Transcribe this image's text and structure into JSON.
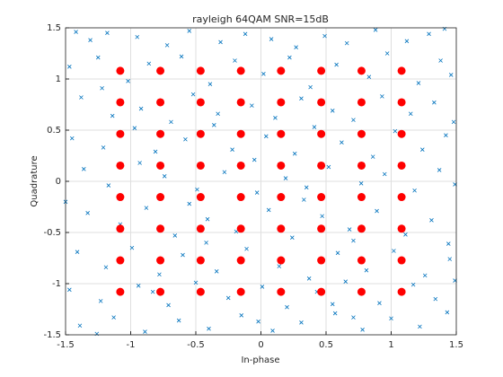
{
  "chart_data": {
    "type": "scatter",
    "title": "rayleigh 64QAM SNR=15dB",
    "x_label": "In-phase",
    "y_label": "Quadrature",
    "xlim": [
      -1.5,
      1.5
    ],
    "ylim": [
      -1.5,
      1.5
    ],
    "xticks": [
      -1.5,
      -1,
      -0.5,
      0,
      0.5,
      1,
      1.5
    ],
    "yticks": [
      -1.5,
      -1,
      -0.5,
      0,
      0.5,
      1,
      1.5
    ],
    "grid": true,
    "series": [
      {
        "color": "#0072bd",
        "marker": "x",
        "x": [
          -1.42,
          -1.31,
          -1.18,
          -0.95,
          -0.72,
          -0.55,
          -0.31,
          -0.12,
          0.08,
          0.27,
          0.49,
          0.66,
          0.88,
          1.12,
          1.29,
          1.41,
          -1.47,
          -1.25,
          -1.02,
          -0.86,
          -0.61,
          -0.39,
          -0.2,
          0.02,
          0.22,
          0.38,
          0.58,
          0.83,
          0.97,
          1.21,
          1.38,
          1.46,
          -1.38,
          -1.14,
          -0.92,
          -0.69,
          -0.52,
          -0.33,
          -0.07,
          0.11,
          0.31,
          0.55,
          0.71,
          0.93,
          1.15,
          1.33,
          1.48,
          -1.22,
          -1.45,
          -1.21,
          -0.97,
          -0.81,
          -0.58,
          -0.36,
          -0.22,
          0.04,
          0.26,
          0.41,
          0.62,
          0.86,
          1.03,
          1.24,
          1.42,
          -0.05,
          -1.36,
          -1.17,
          -0.93,
          -0.74,
          -0.49,
          -0.28,
          -0.03,
          0.19,
          0.35,
          0.52,
          0.77,
          0.95,
          1.18,
          1.37,
          1.49,
          -1.5,
          -1.33,
          -1.08,
          -0.88,
          -0.66,
          -0.41,
          -0.19,
          0.06,
          0.24,
          0.47,
          0.68,
          0.89,
          1.11,
          1.31,
          1.44,
          -0.55,
          0.33,
          -1.41,
          -1.19,
          -0.99,
          -0.78,
          -0.6,
          -0.34,
          -0.11,
          0.14,
          0.37,
          0.59,
          0.81,
          1.02,
          1.26,
          1.45,
          -0.42,
          0.71,
          -1.47,
          -1.23,
          -0.94,
          -0.71,
          -0.5,
          -0.25,
          0.01,
          0.2,
          0.43,
          0.65,
          0.91,
          1.17,
          1.34,
          1.49,
          -0.83,
          0.55,
          -1.39,
          -1.13,
          -0.89,
          -0.63,
          -0.4,
          -0.15,
          0.09,
          0.31,
          0.57,
          0.78,
          1.0,
          1.22,
          1.43,
          -0.02,
          0.71,
          -1.26
        ],
        "y": [
          1.46,
          1.38,
          1.45,
          1.41,
          1.33,
          1.47,
          1.36,
          1.44,
          1.39,
          1.31,
          1.42,
          1.35,
          1.48,
          1.37,
          1.44,
          1.49,
          1.12,
          1.21,
          0.98,
          1.15,
          1.22,
          0.95,
          1.18,
          1.05,
          1.21,
          0.92,
          1.14,
          1.02,
          1.25,
          0.96,
          1.18,
          1.04,
          0.82,
          0.64,
          0.71,
          0.58,
          0.85,
          0.66,
          0.74,
          0.62,
          0.81,
          0.69,
          0.6,
          0.83,
          0.66,
          0.77,
          0.58,
          0.91,
          0.42,
          0.33,
          0.52,
          0.29,
          0.41,
          0.55,
          0.31,
          0.44,
          0.27,
          0.53,
          0.38,
          0.24,
          0.49,
          0.31,
          0.45,
          0.21,
          0.12,
          -0.04,
          0.18,
          0.05,
          -0.08,
          0.09,
          -0.11,
          0.03,
          -0.06,
          0.14,
          -0.02,
          0.07,
          -0.09,
          0.11,
          -0.03,
          -0.2,
          -0.31,
          -0.42,
          -0.26,
          -0.53,
          -0.37,
          -0.49,
          -0.28,
          -0.55,
          -0.34,
          -0.47,
          -0.29,
          -0.52,
          -0.38,
          -0.61,
          -0.22,
          -0.18,
          -0.69,
          -0.84,
          -0.65,
          -0.91,
          -0.72,
          -0.88,
          -0.66,
          -0.83,
          -0.95,
          -0.7,
          -0.87,
          -0.68,
          -0.92,
          -0.76,
          -0.6,
          -0.58,
          -1.06,
          -1.17,
          -1.02,
          -1.21,
          -0.99,
          -1.14,
          -1.03,
          -1.23,
          -1.08,
          -0.98,
          -1.19,
          -1.01,
          -1.15,
          -0.97,
          -1.08,
          -1.2,
          -1.41,
          -1.33,
          -1.47,
          -1.36,
          -1.44,
          -1.31,
          -1.46,
          -1.38,
          -1.29,
          -1.45,
          -1.34,
          -1.42,
          -1.28,
          -1.37,
          -1.33,
          -1.49
        ]
      },
      {
        "color": "#ff0000",
        "marker": "o",
        "x": [
          -1.08,
          -1.08,
          -1.08,
          -1.08,
          -1.08,
          -1.08,
          -1.08,
          -1.08,
          -0.772,
          -0.772,
          -0.772,
          -0.772,
          -0.772,
          -0.772,
          -0.772,
          -0.772,
          -0.463,
          -0.463,
          -0.463,
          -0.463,
          -0.463,
          -0.463,
          -0.463,
          -0.463,
          -0.154,
          -0.154,
          -0.154,
          -0.154,
          -0.154,
          -0.154,
          -0.154,
          -0.154,
          0.154,
          0.154,
          0.154,
          0.154,
          0.154,
          0.154,
          0.154,
          0.154,
          0.463,
          0.463,
          0.463,
          0.463,
          0.463,
          0.463,
          0.463,
          0.463,
          0.772,
          0.772,
          0.772,
          0.772,
          0.772,
          0.772,
          0.772,
          0.772,
          1.08,
          1.08,
          1.08,
          1.08,
          1.08,
          1.08,
          1.08,
          1.08
        ],
        "y": [
          -1.08,
          -0.772,
          -0.463,
          -0.154,
          0.154,
          0.463,
          0.772,
          1.08,
          -1.08,
          -0.772,
          -0.463,
          -0.154,
          0.154,
          0.463,
          0.772,
          1.08,
          -1.08,
          -0.772,
          -0.463,
          -0.154,
          0.154,
          0.463,
          0.772,
          1.08,
          -1.08,
          -0.772,
          -0.463,
          -0.154,
          0.154,
          0.463,
          0.772,
          1.08,
          -1.08,
          -0.772,
          -0.463,
          -0.154,
          0.154,
          0.463,
          0.772,
          1.08,
          -1.08,
          -0.772,
          -0.463,
          -0.154,
          0.154,
          0.463,
          0.772,
          1.08,
          -1.08,
          -0.772,
          -0.463,
          -0.154,
          0.154,
          0.463,
          0.772,
          1.08,
          -1.08,
          -0.772,
          -0.463,
          -0.154,
          0.154,
          0.463,
          0.772,
          1.08
        ]
      }
    ]
  }
}
